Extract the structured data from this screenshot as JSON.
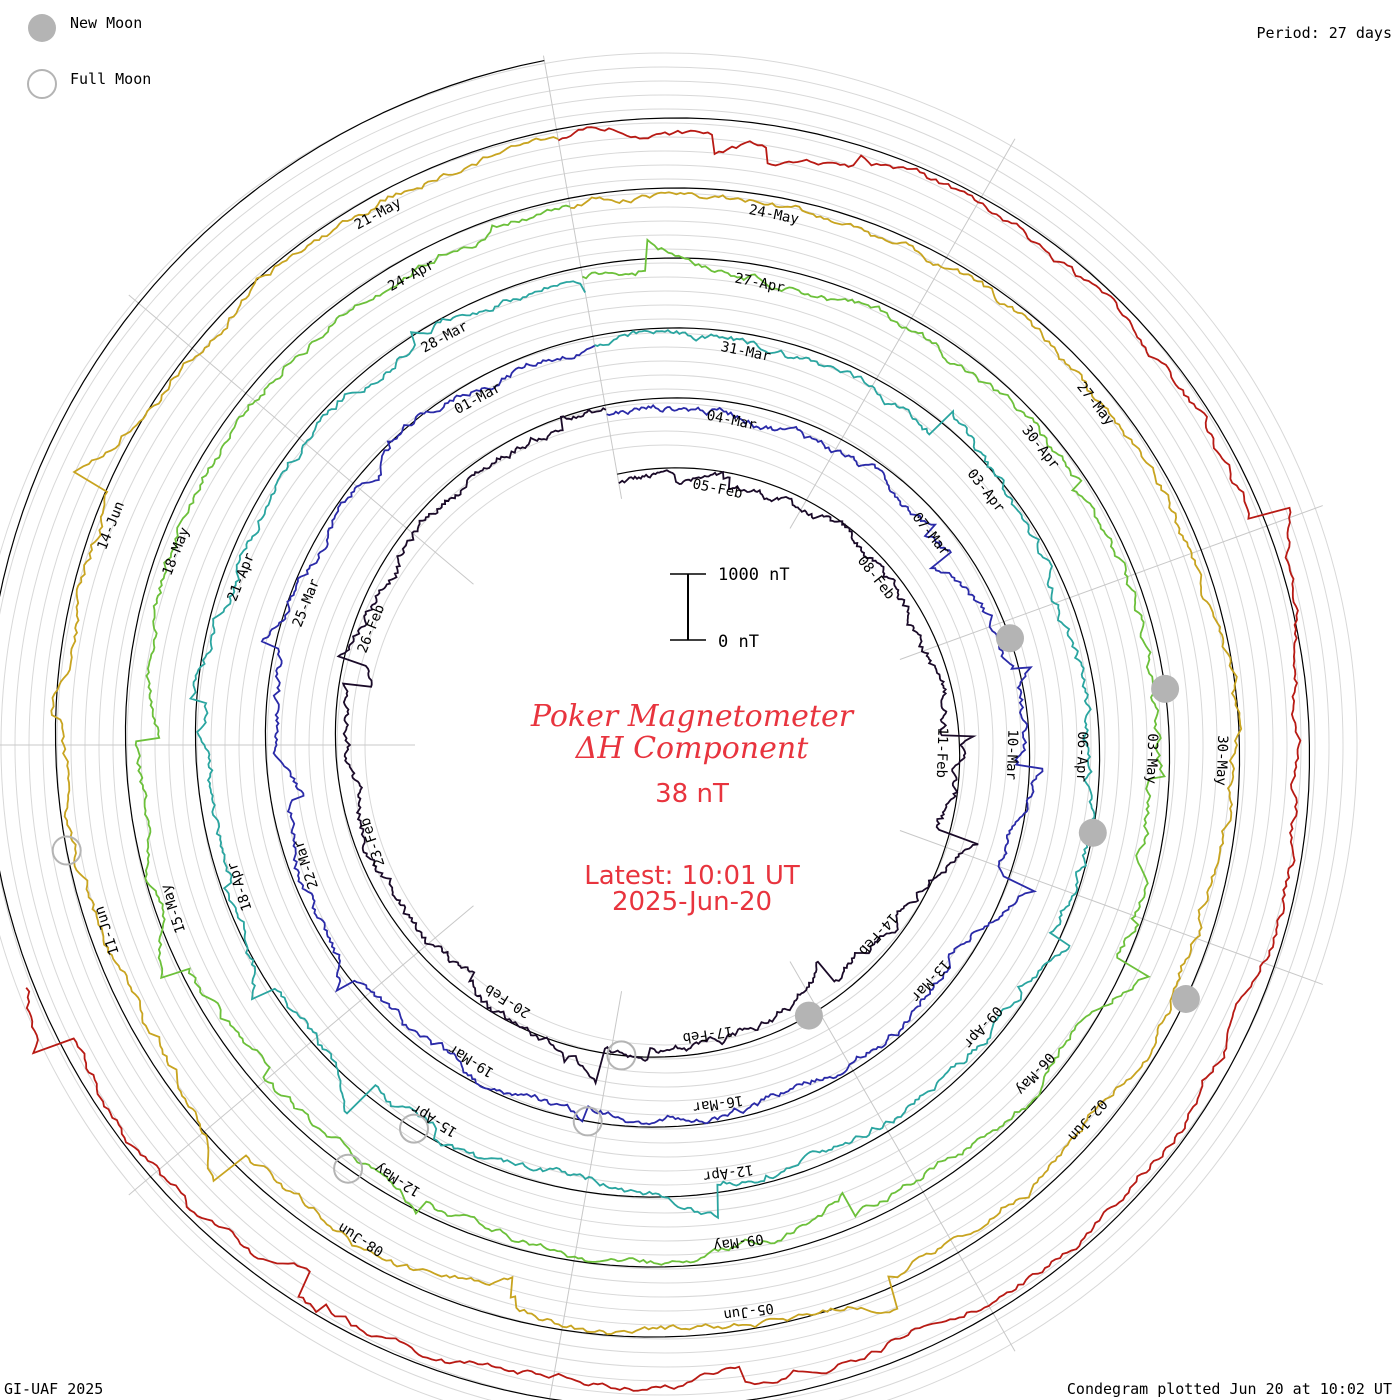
{
  "legend": {
    "new_moon_label": "New Moon",
    "full_moon_label": "Full Moon",
    "new_moon_color": "#b4b4b4",
    "full_moon_color": "#b4b4b4"
  },
  "period_label": "Period: 27 days",
  "title_line1": "Poker Magnetometer",
  "title_line2": "ΔH Component",
  "current_value": "38 nT",
  "latest_label": "Latest: 10:01 UT",
  "latest_date": "2025-Jun-20",
  "scale_top_label": "1000 nT",
  "scale_bottom_label": "0 nT",
  "footer_left": "GI-UAF 2025",
  "footer_right": "Condegram plotted Jun 20 at 10:02 UT",
  "chart_data": {
    "type": "line",
    "title": "Poker Magnetometer ΔH Component",
    "period_days": 27,
    "scale": "1000 nT",
    "series": [
      {
        "rotation": 1,
        "color": "#1a0a28",
        "date_labels": [
          "05-Feb",
          "08-Feb",
          "11-Feb",
          "14-Feb",
          "17-Feb",
          "20-Feb",
          "23-Feb",
          "26-Feb"
        ]
      },
      {
        "rotation": 2,
        "color": "#2a2aa8",
        "date_labels": [
          "04-Mar",
          "07-Mar",
          "10-Mar",
          "13-Mar",
          "16-Mar",
          "19-Mar",
          "22-Mar",
          "25-Mar",
          "01-Mar"
        ]
      },
      {
        "rotation": 3,
        "color": "#2aa5a0",
        "date_labels": [
          "31-Mar",
          "03-Apr",
          "06-Apr",
          "09-Apr",
          "12-Apr",
          "15-Apr",
          "18-Apr",
          "21-Apr",
          "28-Mar"
        ]
      },
      {
        "rotation": 4,
        "color": "#6cc03a",
        "date_labels": [
          "27-Apr",
          "30-Apr",
          "03-May",
          "06-May",
          "09-May",
          "12-May",
          "15-May",
          "18-May",
          "24-Apr"
        ]
      },
      {
        "rotation": 5,
        "color": "#c8a420",
        "date_labels": [
          "24-May",
          "27-May",
          "30-May",
          "02-Jun",
          "05-Jun",
          "08-Jun",
          "11-Jun",
          "14-Jun",
          "21-May"
        ]
      },
      {
        "rotation": 6,
        "color": "#b81a14",
        "date_labels": []
      }
    ],
    "new_moons": [
      "2025-Jan-29",
      "2025-Feb-28",
      "2025-Mar-29",
      "2025-Apr-27",
      "2025-May-27"
    ],
    "full_moons": [
      "2025-Feb-12",
      "2025-Mar-14",
      "2025-Apr-13",
      "2025-May-12",
      "2025-Jun-11"
    ]
  }
}
